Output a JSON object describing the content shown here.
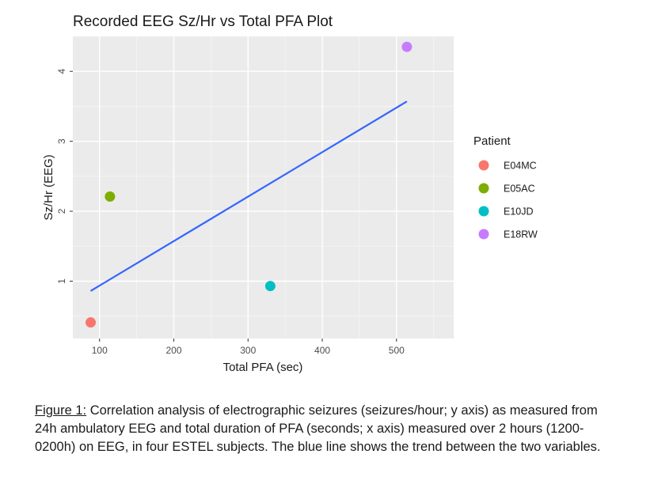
{
  "chart_data": {
    "type": "scatter",
    "title": "Recorded EEG Sz/Hr vs Total PFA Plot",
    "xlabel": "Total PFA (sec)",
    "ylabel": "Sz/Hr (EEG)",
    "xlim": [
      64,
      577
    ],
    "ylim": [
      0.18,
      4.5
    ],
    "xticks": [
      100,
      200,
      300,
      400,
      500
    ],
    "yticks": [
      1,
      2,
      3,
      4
    ],
    "grid": true,
    "legend_title": "Patient",
    "legend_position": "right",
    "series": [
      {
        "name": "E04MC",
        "color": "#F8766D",
        "x": [
          88
        ],
        "y": [
          0.41
        ]
      },
      {
        "name": "E05AC",
        "color": "#7CAE00",
        "x": [
          114
        ],
        "y": [
          2.21
        ]
      },
      {
        "name": "E10JD",
        "color": "#00BFC4",
        "x": [
          330
        ],
        "y": [
          0.93
        ]
      },
      {
        "name": "E18RW",
        "color": "#C77CFF",
        "x": [
          514
        ],
        "y": [
          4.35
        ]
      }
    ],
    "trend_line": {
      "color": "#3366FF",
      "x": [
        88,
        514
      ],
      "y": [
        0.86,
        3.57
      ]
    }
  },
  "caption": {
    "label": "Figure 1:",
    "text": "  Correlation analysis of electrographic seizures (seizures/hour; y axis) as measured from 24h ambulatory EEG and total duration of PFA (seconds; x axis) measured over 2 hours (1200-0200h) on EEG, in four ESTEL subjects. The blue line shows the trend between the two variables."
  }
}
